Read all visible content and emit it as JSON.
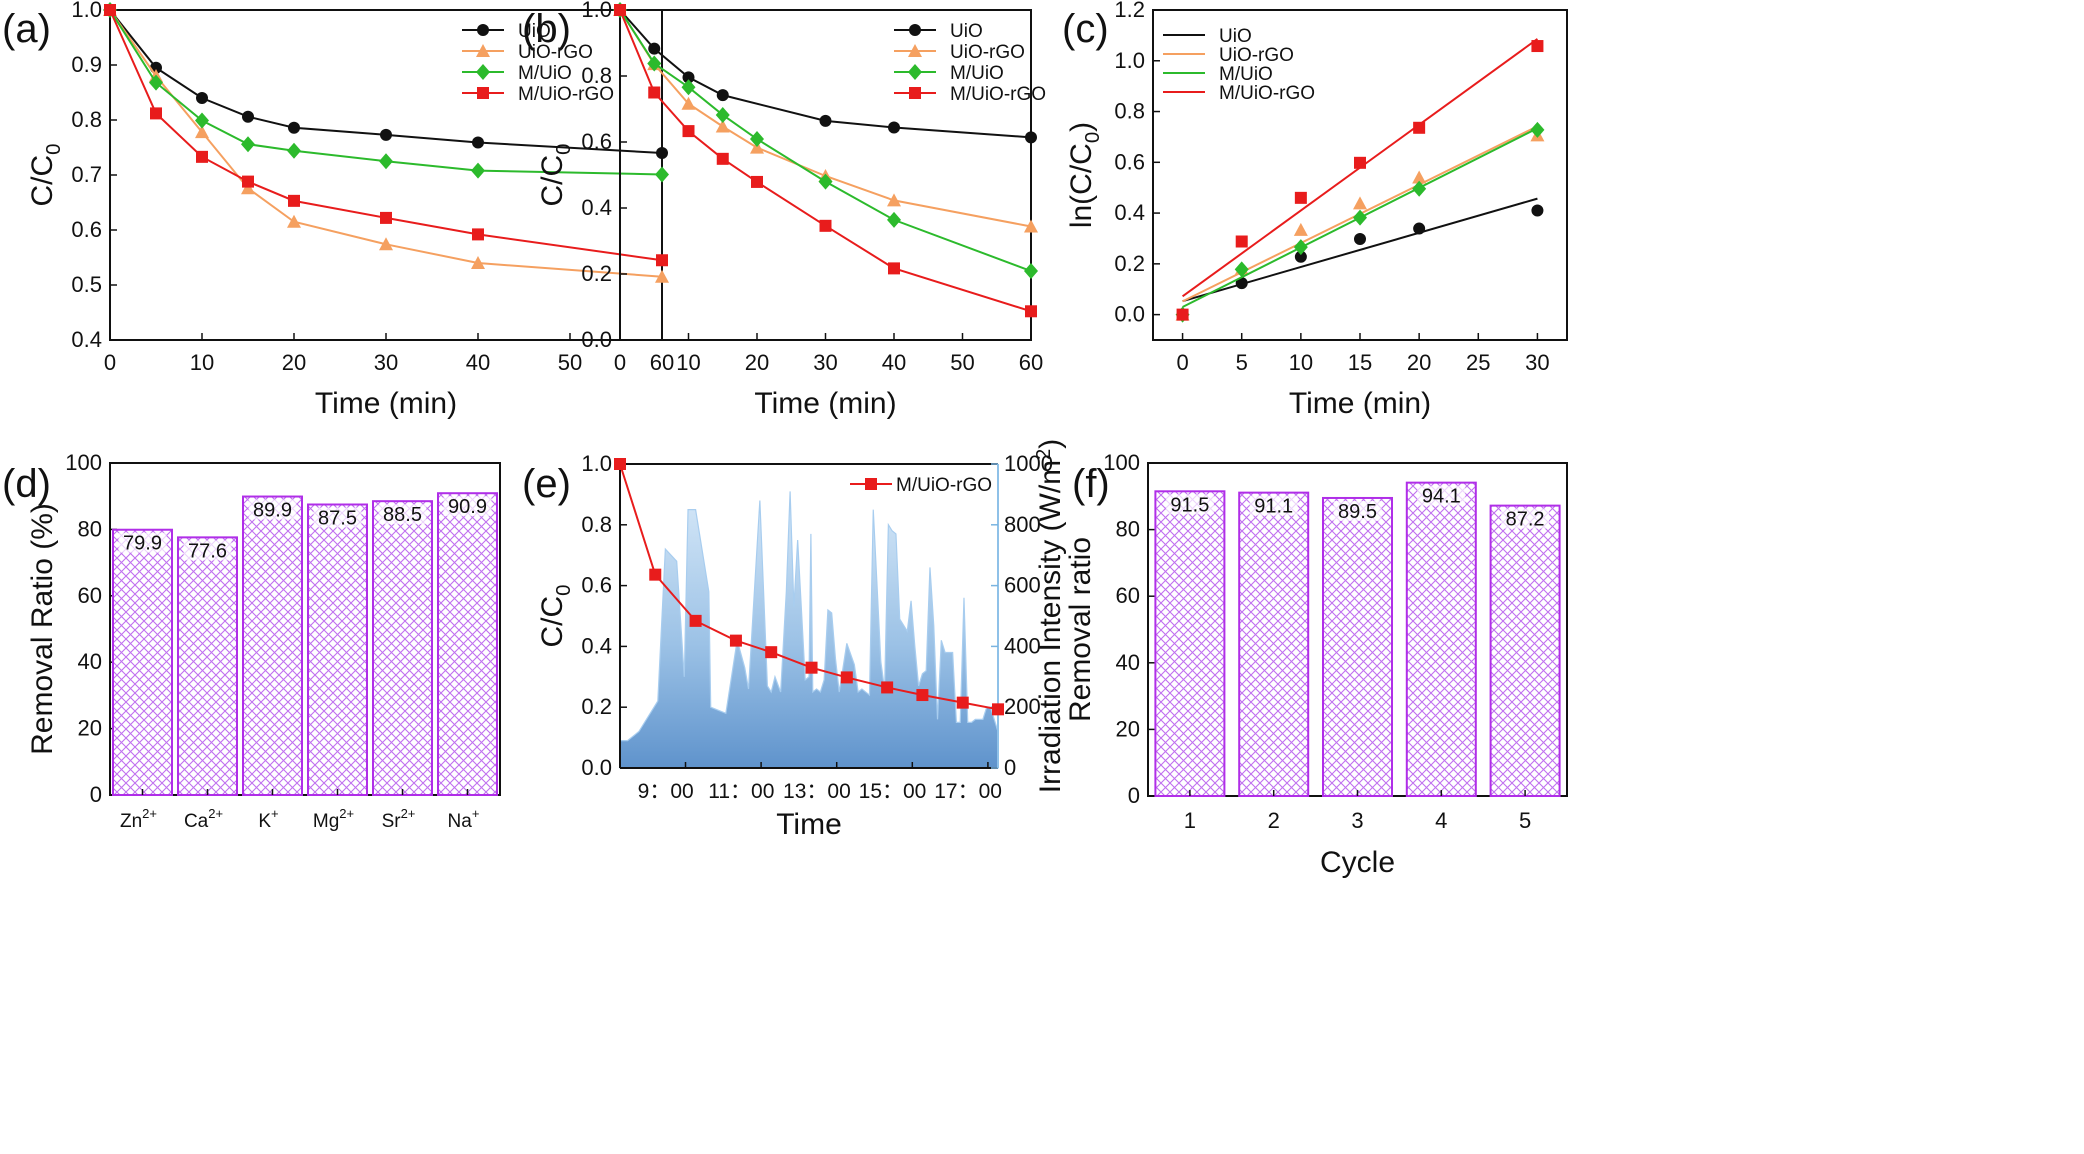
{
  "chart_data": [
    {
      "panel": "(a)",
      "type": "line",
      "xlabel": "Time (min)",
      "ylabel": "C/C0",
      "xlim": [
        0,
        60
      ],
      "ylim": [
        0.4,
        1.0
      ],
      "xticks": [
        0,
        10,
        20,
        30,
        40,
        50,
        60
      ],
      "yticks": [
        "0.4",
        "0.5",
        "0.6",
        "0.7",
        "0.8",
        "0.9",
        "1.0"
      ],
      "x": [
        0,
        5,
        10,
        15,
        20,
        30,
        40,
        60
      ],
      "legend": "top-right",
      "series": [
        {
          "name": "UiO",
          "color": "#111111",
          "marker": "circle",
          "values": [
            1.0,
            0.895,
            0.84,
            0.806,
            0.786,
            0.773,
            0.759,
            0.74
          ]
        },
        {
          "name": "UiO-rGO",
          "color": "#f5a060",
          "marker": "triangle",
          "values": [
            1.0,
            0.88,
            0.778,
            0.676,
            0.615,
            0.574,
            0.54,
            0.515
          ]
        },
        {
          "name": "M/UiO",
          "color": "#2cba2c",
          "marker": "diamond",
          "values": [
            1.0,
            0.868,
            0.799,
            0.756,
            0.744,
            0.725,
            0.708,
            0.701
          ]
        },
        {
          "name": "M/UiO-rGO",
          "color": "#e81c1c",
          "marker": "square",
          "values": [
            1.0,
            0.812,
            0.733,
            0.688,
            0.653,
            0.622,
            0.592,
            0.545
          ]
        }
      ]
    },
    {
      "panel": "(b)",
      "type": "line",
      "xlabel": "Time (min)",
      "ylabel": "C/C0",
      "xlim": [
        0,
        60
      ],
      "ylim": [
        0.0,
        1.0
      ],
      "xticks": [
        0,
        10,
        20,
        30,
        40,
        50,
        60
      ],
      "yticks": [
        "0.0",
        "0.2",
        "0.4",
        "0.6",
        "0.8",
        "1.0"
      ],
      "x": [
        0,
        5,
        10,
        15,
        20,
        30,
        40,
        60
      ],
      "legend": "top-right",
      "series": [
        {
          "name": "UiO",
          "color": "#111111",
          "marker": "circle",
          "values": [
            1.0,
            0.883,
            0.796,
            0.742,
            null,
            0.664,
            0.644,
            0.614
          ]
        },
        {
          "name": "UiO-rGO",
          "color": "#f5a060",
          "marker": "triangle",
          "values": [
            1.0,
            0.836,
            0.716,
            0.647,
            0.583,
            0.497,
            0.423,
            0.344
          ]
        },
        {
          "name": "M/UiO",
          "color": "#2cba2c",
          "marker": "diamond",
          "values": [
            1.0,
            0.838,
            0.766,
            0.682,
            0.609,
            0.48,
            0.364,
            0.209
          ]
        },
        {
          "name": "M/UiO-rGO",
          "color": "#e81c1c",
          "marker": "square",
          "values": [
            1.0,
            0.75,
            0.633,
            0.549,
            0.479,
            0.346,
            0.217,
            0.087
          ]
        }
      ]
    },
    {
      "panel": "(c)",
      "type": "scatter",
      "xlabel": "Time (min)",
      "ylabel": "ln(C/C0)",
      "xlim": [
        -2.5,
        32.5
      ],
      "ylim": [
        -0.1,
        1.2
      ],
      "xticks": [
        0,
        5,
        10,
        15,
        20,
        25,
        30
      ],
      "yticks": [
        "0.0",
        "0.2",
        "0.4",
        "0.6",
        "0.8",
        "1.0",
        "1.2"
      ],
      "x": [
        0,
        5,
        10,
        15,
        20,
        30
      ],
      "legend": "top-left",
      "series": [
        {
          "name": "UiO",
          "color": "#111111",
          "marker": "circle",
          "values": [
            0.0,
            0.124,
            0.228,
            0.298,
            0.339,
            0.41
          ],
          "fit": [
            0.053,
            0.457
          ]
        },
        {
          "name": "UiO-rGO",
          "color": "#f5a060",
          "marker": "triangle",
          "values": [
            0.0,
            0.18,
            0.334,
            0.438,
            0.54,
            0.706
          ],
          "fit": [
            0.052,
            0.742
          ]
        },
        {
          "name": "M/UiO",
          "color": "#2cba2c",
          "marker": "diamond",
          "values": [
            0.0,
            0.178,
            0.266,
            0.382,
            0.496,
            0.728
          ],
          "fit": [
            0.03,
            0.734
          ]
        },
        {
          "name": "M/UiO-rGO",
          "color": "#e81c1c",
          "marker": "square",
          "values": [
            0.0,
            0.288,
            0.46,
            0.598,
            0.736,
            1.058
          ],
          "fit": [
            0.072,
            1.086
          ]
        }
      ]
    },
    {
      "panel": "(d)",
      "type": "bar",
      "xlabel": "",
      "ylabel": "Removal Ratio (%)",
      "ylim": [
        0,
        100
      ],
      "yticks": [
        "0",
        "20",
        "40",
        "60",
        "80",
        "100"
      ],
      "categories": [
        [
          "Zn",
          "2+"
        ],
        [
          "Ca",
          "2+"
        ],
        [
          "K",
          "+"
        ],
        [
          "Mg",
          "2+"
        ],
        [
          "Sr",
          "2+"
        ],
        [
          "Na",
          "+"
        ]
      ],
      "values": [
        79.9,
        77.6,
        89.9,
        87.5,
        88.5,
        90.9
      ],
      "labels": [
        "79.9",
        "77.6",
        "89.9",
        "87.5",
        "88.5",
        "90.9"
      ]
    },
    {
      "panel": "(e)",
      "type": "line",
      "xlabel": "Time",
      "ylabel": "C/C0",
      "y2label": "Irradiation Intensity (W/m2)",
      "ylim": [
        0.0,
        1.0
      ],
      "y2lim": [
        0,
        1000
      ],
      "yticks": [
        "0.0",
        "0.2",
        "0.4",
        "0.6",
        "0.8",
        "1.0"
      ],
      "y2ticks": [
        "0",
        "200",
        "400",
        "600",
        "800",
        "1000"
      ],
      "xticks": [
        "9：00",
        "11：00",
        "13：00",
        "15：00",
        "17：00"
      ],
      "series": [
        {
          "name": "M/UiO-rGO",
          "color": "#e81c1c",
          "marker": "square",
          "t": [
            0,
            0.0933,
            0.2,
            0.3067,
            0.4,
            0.5067,
            0.6,
            0.7067,
            0.8,
            0.9067,
            1.0
          ],
          "values": [
            1.0,
            0.636,
            0.484,
            0.419,
            0.381,
            0.33,
            0.298,
            0.265,
            0.24,
            0.215,
            0.193
          ]
        }
      ],
      "irradiation": {
        "color": "#7ab4e0",
        "t": [
          0,
          0.02,
          0.05,
          0.09,
          0.1,
          0.12,
          0.15,
          0.17,
          0.18,
          0.19,
          0.2,
          0.235,
          0.24,
          0.28,
          0.29,
          0.31,
          0.33,
          0.34,
          0.37,
          0.39,
          0.4,
          0.41,
          0.425,
          0.44,
          0.45,
          0.46,
          0.47,
          0.49,
          0.5,
          0.505,
          0.51,
          0.52,
          0.53,
          0.54,
          0.55,
          0.56,
          0.57,
          0.58,
          0.6,
          0.62,
          0.63,
          0.64,
          0.66,
          0.67,
          0.69,
          0.7,
          0.71,
          0.72,
          0.73,
          0.74,
          0.76,
          0.77,
          0.78,
          0.79,
          0.8,
          0.81,
          0.82,
          0.83,
          0.84,
          0.85,
          0.86,
          0.87,
          0.88,
          0.89,
          0.9,
          0.91,
          0.92,
          0.93,
          0.94,
          0.95,
          0.96,
          0.97,
          0.98,
          0.99,
          1.0
        ],
        "values": [
          90,
          90,
          120,
          200,
          220,
          720,
          680,
          300,
          850,
          850,
          850,
          580,
          200,
          180,
          260,
          420,
          330,
          260,
          880,
          270,
          250,
          300,
          250,
          580,
          910,
          530,
          750,
          290,
          300,
          770,
          250,
          260,
          250,
          290,
          520,
          510,
          360,
          250,
          410,
          340,
          250,
          260,
          240,
          850,
          350,
          260,
          800,
          780,
          770,
          490,
          450,
          550,
          400,
          270,
          310,
          320,
          660,
          470,
          160,
          420,
          380,
          380,
          380,
          150,
          150,
          560,
          150,
          150,
          160,
          160,
          160,
          200,
          200,
          160,
          120
        ]
      },
      "legend": "top-right"
    },
    {
      "panel": "(f)",
      "type": "bar",
      "xlabel": "Cycle",
      "ylabel": "Removal ratio",
      "ylim": [
        0,
        100
      ],
      "yticks": [
        "0",
        "20",
        "40",
        "60",
        "80",
        "100"
      ],
      "categories": [
        "1",
        "2",
        "3",
        "4",
        "5"
      ],
      "values": [
        91.5,
        91.1,
        89.5,
        94.1,
        87.2
      ],
      "labels": [
        "91.5",
        "91.1",
        "89.5",
        "94.1",
        "87.2"
      ]
    }
  ]
}
